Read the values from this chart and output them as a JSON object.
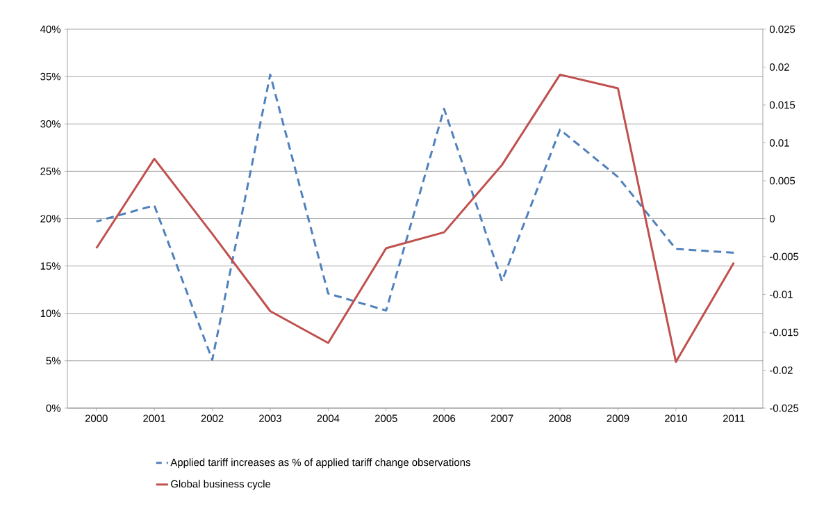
{
  "chart_data": {
    "type": "line",
    "categories": [
      "2000",
      "2001",
      "2002",
      "2003",
      "2004",
      "2005",
      "2006",
      "2007",
      "2008",
      "2009",
      "2010",
      "2011"
    ],
    "series": [
      {
        "name": "Applied tariff increases as % of applied tariff change observations",
        "color": "#4f81bd",
        "line_style": "dashed",
        "values": [
          19.7,
          21.4,
          5.1,
          35.2,
          12.1,
          10.3,
          31.6,
          13.4,
          29.4,
          24.4,
          16.8,
          16.4
        ]
      },
      {
        "name": "Global business cycle",
        "color": "#c0504d",
        "line_style": "solid",
        "axis": "y2",
        "values": [
          -0.0039,
          0.0079,
          -0.002,
          -0.0122,
          -0.0164,
          -0.0039,
          -0.0018,
          0.0071,
          0.019,
          0.0172,
          -0.0189,
          -0.0058
        ]
      }
    ],
    "ylim": [
      0,
      40
    ],
    "yticks": [
      {
        "value": 0,
        "label": "0%"
      },
      {
        "value": 5,
        "label": "5%"
      },
      {
        "value": 10,
        "label": "10%"
      },
      {
        "value": 15,
        "label": "15%"
      },
      {
        "value": 20,
        "label": "20%"
      },
      {
        "value": 25,
        "label": "25%"
      },
      {
        "value": 30,
        "label": "30%"
      },
      {
        "value": 35,
        "label": "35%"
      },
      {
        "value": 40,
        "label": "40%"
      }
    ],
    "y2lim": [
      -0.025,
      0.025
    ],
    "y2ticks": [
      -0.025,
      -0.02,
      -0.015,
      -0.01,
      -0.005,
      0,
      0.005,
      0.01,
      0.015,
      0.02,
      0.025
    ],
    "grid": "y",
    "legend": "bottom",
    "marker": "none"
  }
}
